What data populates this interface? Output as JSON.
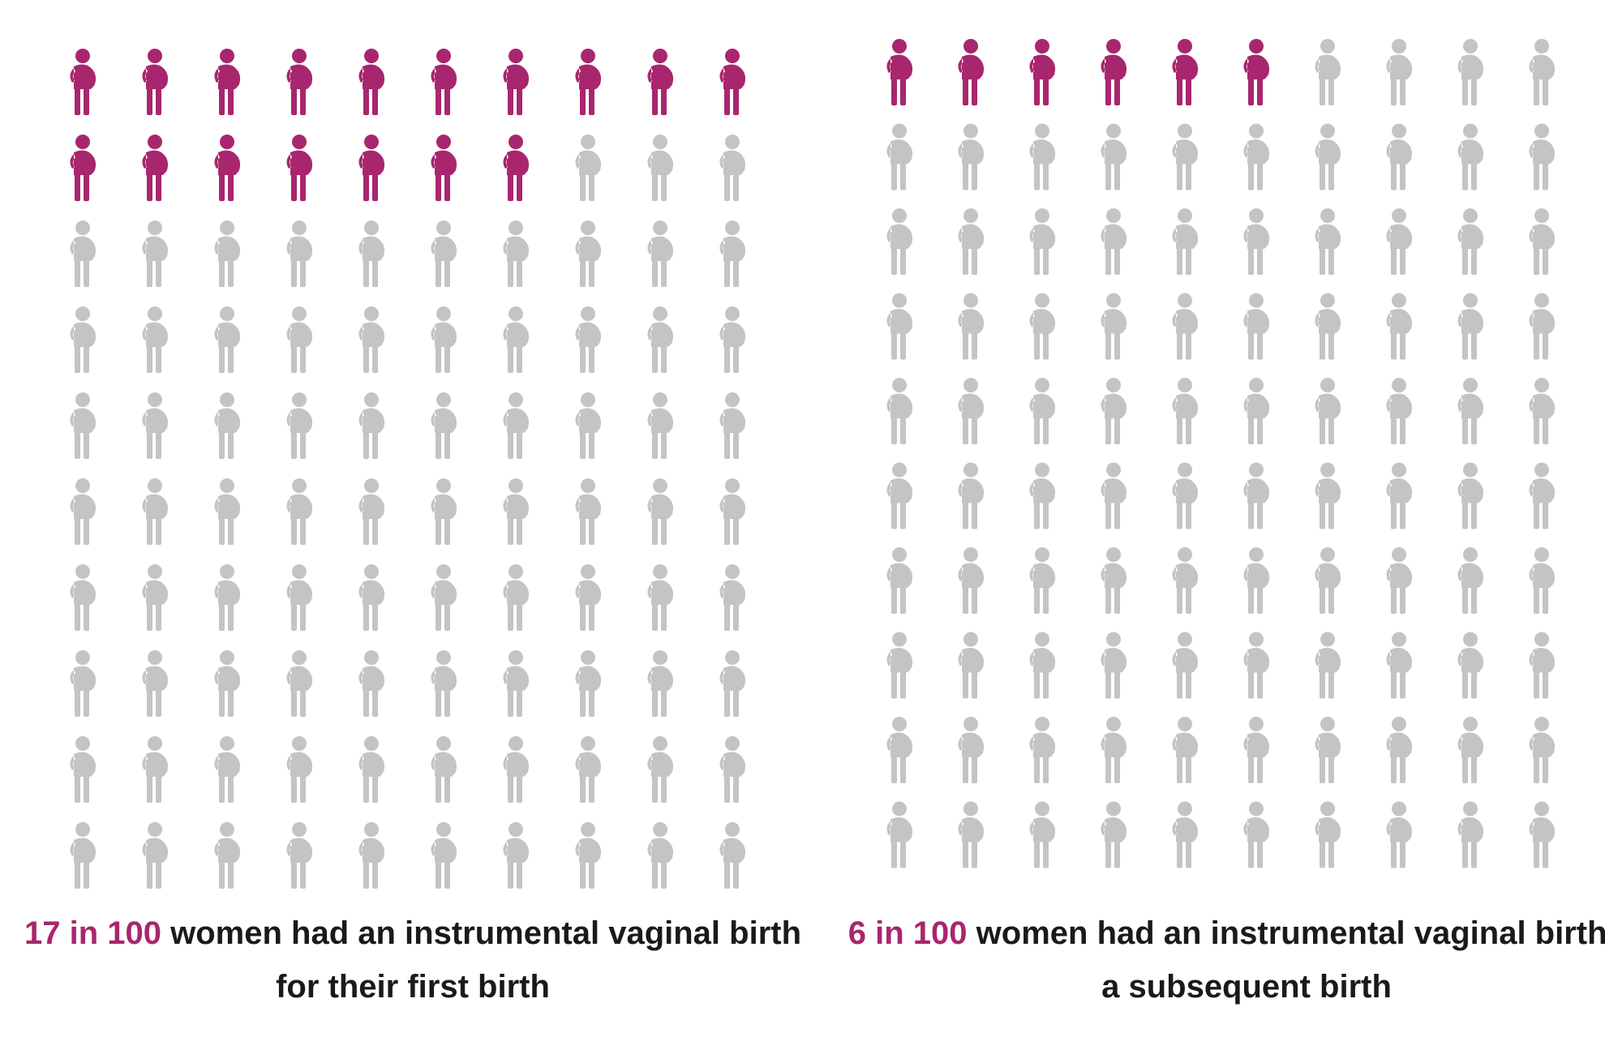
{
  "chart_data": [
    {
      "type": "pictogram",
      "values": [
        17
      ],
      "value_labels": [
        "17 in 100"
      ],
      "total": 100,
      "caption": "women had an instrumental vaginal birth for their first birth",
      "color": "#a8266e",
      "rest_color": "#c4c4c4"
    },
    {
      "type": "pictogram",
      "values": [
        6
      ],
      "value_labels": [
        "6 in 100"
      ],
      "total": 100,
      "caption": "women had an instrumental vaginal birth in a subsequent birth",
      "color": "#a8266e",
      "rest_color": "#c4c4c4"
    }
  ]
}
